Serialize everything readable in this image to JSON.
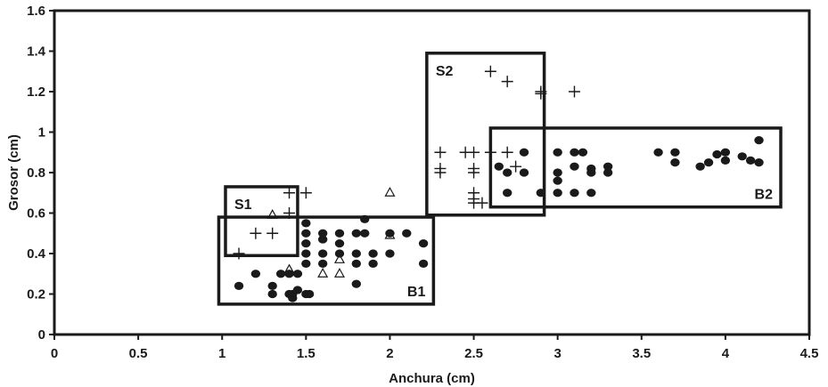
{
  "chart_data": {
    "type": "scatter",
    "title": "",
    "xlabel": "Anchura (cm)",
    "ylabel": "Grosor  (cm)",
    "xlim": [
      0,
      4.5
    ],
    "ylim": [
      0,
      1.6
    ],
    "x_ticks": [
      "0",
      "0.5",
      "1",
      "1.5",
      "2",
      "2.5",
      "3",
      "3.5",
      "4",
      "4.5"
    ],
    "y_ticks": [
      "0",
      "0.2",
      "0.4",
      "0.6",
      "0.8",
      "1",
      "1.2",
      "1.4",
      "1.6"
    ],
    "grid": false,
    "legend": "none",
    "colors": {
      "ink": "#1a1a1a",
      "background": "#ffffff"
    },
    "series": [
      {
        "marker": "filled-circle",
        "points": [
          [
            1.1,
            0.24
          ],
          [
            1.2,
            0.3
          ],
          [
            1.3,
            0.24
          ],
          [
            1.3,
            0.2
          ],
          [
            1.35,
            0.3
          ],
          [
            1.4,
            0.2
          ],
          [
            1.4,
            0.3
          ],
          [
            1.42,
            0.18
          ],
          [
            1.45,
            0.22
          ],
          [
            1.45,
            0.3
          ],
          [
            1.42,
            0.2
          ],
          [
            1.5,
            0.2
          ],
          [
            1.52,
            0.2
          ],
          [
            1.5,
            0.55
          ],
          [
            1.5,
            0.5
          ],
          [
            1.5,
            0.45
          ],
          [
            1.5,
            0.4
          ],
          [
            1.5,
            0.35
          ],
          [
            1.6,
            0.5
          ],
          [
            1.6,
            0.47
          ],
          [
            1.6,
            0.4
          ],
          [
            1.6,
            0.35
          ],
          [
            1.7,
            0.5
          ],
          [
            1.7,
            0.45
          ],
          [
            1.7,
            0.4
          ],
          [
            1.8,
            0.5
          ],
          [
            1.8,
            0.4
          ],
          [
            1.8,
            0.35
          ],
          [
            1.8,
            0.25
          ],
          [
            1.85,
            0.57
          ],
          [
            1.85,
            0.5
          ],
          [
            1.9,
            0.4
          ],
          [
            1.9,
            0.35
          ],
          [
            2.0,
            0.5
          ],
          [
            2.0,
            0.4
          ],
          [
            2.1,
            0.5
          ],
          [
            2.2,
            0.45
          ],
          [
            2.2,
            0.35
          ],
          [
            2.65,
            0.83
          ],
          [
            2.7,
            0.8
          ],
          [
            2.7,
            0.7
          ],
          [
            2.8,
            0.9
          ],
          [
            2.8,
            0.8
          ],
          [
            2.9,
            0.7
          ],
          [
            3.0,
            0.9
          ],
          [
            3.0,
            0.8
          ],
          [
            3.0,
            0.76
          ],
          [
            3.0,
            0.7
          ],
          [
            3.1,
            0.9
          ],
          [
            3.1,
            0.83
          ],
          [
            3.1,
            0.7
          ],
          [
            3.15,
            0.9
          ],
          [
            3.2,
            0.82
          ],
          [
            3.2,
            0.8
          ],
          [
            3.2,
            0.7
          ],
          [
            3.3,
            0.83
          ],
          [
            3.3,
            0.8
          ],
          [
            3.6,
            0.9
          ],
          [
            3.7,
            0.9
          ],
          [
            3.7,
            0.85
          ],
          [
            3.85,
            0.83
          ],
          [
            3.9,
            0.85
          ],
          [
            3.95,
            0.89
          ],
          [
            4.0,
            0.9
          ],
          [
            4.0,
            0.86
          ],
          [
            4.1,
            0.88
          ],
          [
            4.15,
            0.86
          ],
          [
            4.2,
            0.85
          ],
          [
            4.2,
            0.96
          ]
        ]
      },
      {
        "marker": "plus",
        "points": [
          [
            1.1,
            0.4
          ],
          [
            1.2,
            0.5
          ],
          [
            1.3,
            0.5
          ],
          [
            1.4,
            0.7
          ],
          [
            1.4,
            0.6
          ],
          [
            1.5,
            0.7
          ],
          [
            2.3,
            0.9
          ],
          [
            2.3,
            0.82
          ],
          [
            2.3,
            0.8
          ],
          [
            2.45,
            0.9
          ],
          [
            2.5,
            0.9
          ],
          [
            2.5,
            0.82
          ],
          [
            2.5,
            0.8
          ],
          [
            2.5,
            0.7
          ],
          [
            2.5,
            0.67
          ],
          [
            2.5,
            0.65
          ],
          [
            2.55,
            0.65
          ],
          [
            2.6,
            0.9
          ],
          [
            2.6,
            1.3
          ],
          [
            2.7,
            1.25
          ],
          [
            2.7,
            0.9
          ],
          [
            2.75,
            0.83
          ],
          [
            2.9,
            1.2
          ],
          [
            2.9,
            1.19
          ],
          [
            3.1,
            1.2
          ]
        ]
      },
      {
        "marker": "open-triangle",
        "points": [
          [
            1.3,
            0.59
          ],
          [
            1.4,
            0.32
          ],
          [
            1.6,
            0.3
          ],
          [
            1.7,
            0.37
          ],
          [
            1.7,
            0.3
          ],
          [
            2.0,
            0.7
          ],
          [
            2.0,
            0.49
          ]
        ]
      }
    ],
    "annotations": [
      {
        "label": "S1",
        "x_range": [
          1.02,
          1.45
        ],
        "y_range": [
          0.39,
          0.73
        ],
        "label_pos": "top-left"
      },
      {
        "label": "S2",
        "x_range": [
          2.22,
          2.92
        ],
        "y_range": [
          0.59,
          1.39
        ],
        "label_pos": "top-left"
      },
      {
        "label": "B1",
        "x_range": [
          0.98,
          2.26
        ],
        "y_range": [
          0.15,
          0.58
        ],
        "label_pos": "bottom-right"
      },
      {
        "label": "B2",
        "x_range": [
          2.6,
          4.33
        ],
        "y_range": [
          0.63,
          1.02
        ],
        "label_pos": "bottom-right"
      }
    ]
  }
}
